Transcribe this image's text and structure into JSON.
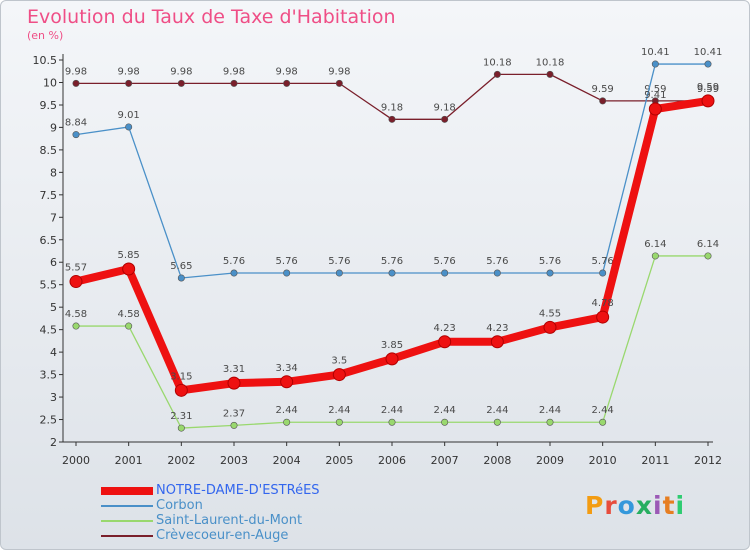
{
  "title": "Evolution du Taux de Taxe d'Habitation",
  "unit_label": "(en %)",
  "logo": {
    "text": "Proxiti",
    "colors": [
      "#f39c12",
      "#e74c3c",
      "#3498db",
      "#27ae60",
      "#9b59b6",
      "#e67e22",
      "#2ecc71"
    ]
  },
  "chart_data": {
    "type": "line",
    "title": "Evolution du Taux de Taxe d'Habitation",
    "ylabel": "(en %)",
    "xlabel": "",
    "x": [
      "2000",
      "2001",
      "2002",
      "2003",
      "2004",
      "2005",
      "2006",
      "2007",
      "2008",
      "2009",
      "2010",
      "2011",
      "2012"
    ],
    "ylim": [
      2,
      10.5
    ],
    "yticks": [
      "2",
      "2.5",
      "3",
      "3.5",
      "4",
      "4.5",
      "5",
      "5.5",
      "6",
      "6.5",
      "7",
      "7.5",
      "8",
      "8.5",
      "9",
      "9.5",
      "10",
      "10.5"
    ],
    "grid": false,
    "legend_position": "bottom-left",
    "series": [
      {
        "name": "Crèvecoeur-en-Auge",
        "color": "#7a1f2b",
        "labels": [
          "9.98",
          "9.98",
          "9.98",
          "9.98",
          "9.98",
          "9.98",
          "9.18",
          "9.18",
          "10.18",
          "10.18",
          "9.59",
          "9.59",
          "9.59"
        ],
        "values": [
          9.98,
          9.98,
          9.98,
          9.98,
          9.98,
          9.98,
          9.18,
          9.18,
          10.18,
          10.18,
          9.59,
          9.59,
          9.59
        ]
      },
      {
        "name": "Corbon",
        "color": "#4a90c8",
        "labels": [
          "8.84",
          "9.01",
          "5.65",
          "5.76",
          "5.76",
          "5.76",
          "5.76",
          "5.76",
          "5.76",
          "5.76",
          "5.76",
          "10.41",
          "10.41"
        ],
        "values": [
          8.84,
          9.01,
          5.65,
          5.76,
          5.76,
          5.76,
          5.76,
          5.76,
          5.76,
          5.76,
          5.76,
          10.41,
          10.41
        ]
      },
      {
        "name": "Saint-Laurent-du-Mont",
        "color": "#99d86e",
        "labels": [
          "4.58",
          "4.58",
          "2.31",
          "2.37",
          "2.44",
          "2.44",
          "2.44",
          "2.44",
          "2.44",
          "2.44",
          "2.44",
          "6.14",
          "6.14"
        ],
        "values": [
          4.58,
          4.58,
          2.31,
          2.37,
          2.44,
          2.44,
          2.44,
          2.44,
          2.44,
          2.44,
          2.44,
          6.14,
          6.14
        ]
      },
      {
        "name": "NOTRE-DAME-D'ESTRéES",
        "color": "#ee1111",
        "labels": [
          "5.57",
          "5.85",
          "3.15",
          "3.31",
          "3.34",
          "3.5",
          "3.85",
          "4.23",
          "4.23",
          "4.55",
          "4.78",
          "9.41",
          "9.59"
        ],
        "values": [
          5.57,
          5.85,
          3.15,
          3.31,
          3.34,
          3.5,
          3.85,
          4.23,
          4.23,
          4.55,
          4.78,
          9.41,
          9.59
        ]
      }
    ],
    "legend_order": [
      3,
      1,
      2,
      0
    ]
  }
}
